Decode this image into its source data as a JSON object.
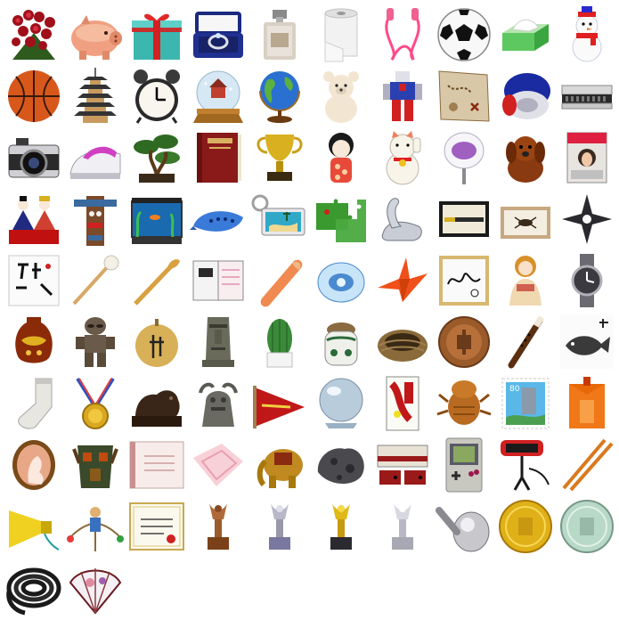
{
  "sheet": {
    "columns": 10,
    "items": [
      "roses-bouquet-icon",
      "piggy-bank-icon",
      "gift-box-icon",
      "ring-box-icon",
      "perfume-bottle-icon",
      "toilet-paper-icon",
      "jump-rope-icon",
      "soccer-ball-icon",
      "tissue-box-icon",
      "snowman-icon",
      "basketball-icon",
      "pagoda-icon",
      "alarm-clock-icon",
      "snow-globe-icon",
      "globe-icon",
      "teddy-bear-icon",
      "robot-toy-icon",
      "treasure-map-icon",
      "toilet-seat-icon",
      "harmonica-icon",
      "camera-icon",
      "clothes-iron-icon",
      "bonsai-icon",
      "dictionary-book-icon",
      "trophy-cup-icon",
      "kokeshi-doll-icon",
      "lucky-cat-icon",
      "paper-fan-icon",
      "puppy-icon",
      "magazine-icon",
      "hina-dolls-icon",
      "totem-pole-icon",
      "aquarium-icon",
      "ocarina-icon",
      "keychain-icon",
      "puzzle-pieces-icon",
      "glass-swan-icon",
      "pen-case-icon",
      "specimen-box-icon",
      "shuriken-icon",
      "calligraphy-paper-icon",
      "ear-pick-icon",
      "shoehorn-icon",
      "letter-set-icon",
      "hanko-stamp-icon",
      "pacifier-icon",
      "paper-crane-icon",
      "autograph-card-icon",
      "western-doll-icon",
      "wristwatch-icon",
      "lacquer-vase-icon",
      "dogu-figure-icon",
      "firework-shell-icon",
      "moai-icon",
      "cactus-icon",
      "pickle-jar-icon",
      "bird-nest-icon",
      "medal-coin-icon",
      "recorder-flute-icon",
      "fish-print-icon",
      "sock-icon",
      "gold-medal-icon",
      "bear-carving-icon",
      "shisa-statue-icon",
      "pennant-flag-icon",
      "crystal-ball-icon",
      "hanafuda-card-icon",
      "cicada-shell-icon",
      "postage-stamp-icon",
      "omamori-charm-icon",
      "cameo-brooch-icon",
      "tribal-mask-icon",
      "stationery-note-icon",
      "handkerchief-icon",
      "elephant-statue-icon",
      "meteorite-icon",
      "famicom-console-icon",
      "game-boy-icon",
      "virtual-boy-icon",
      "chopsticks-icon",
      "megaphone-icon",
      "yajirobe-toy-icon",
      "certificate-icon",
      "bronze-trophy-icon",
      "silver-trophy-icon",
      "gold-trophy-icon",
      "platinum-trophy-icon",
      "metal-knob-icon",
      "gold-coin-icon",
      "silver-coin-icon",
      "coiled-rope-icon",
      "folding-fan-icon"
    ]
  }
}
